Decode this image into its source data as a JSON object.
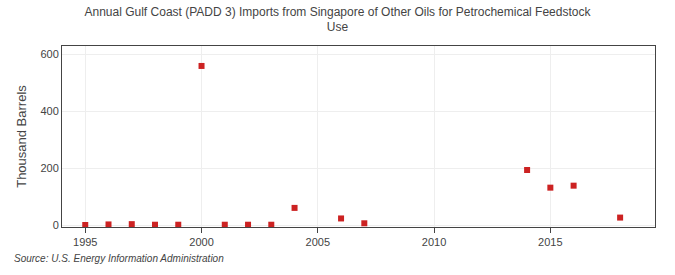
{
  "chart_data": {
    "type": "scatter",
    "title": "Annual Gulf Coast (PADD 3) Imports from Singapore of Other Oils for Petrochemical Feedstock\nUse",
    "ylabel": "Thousand Barrels",
    "annotations": [
      "Source: U.S. Energy Information Administration"
    ],
    "x": [
      1995,
      1996,
      1997,
      1998,
      1999,
      2000,
      2001,
      2002,
      2003,
      2004,
      2006,
      2007,
      2014,
      2015,
      2016,
      2018
    ],
    "values": [
      2,
      4,
      5,
      3,
      3,
      560,
      3,
      3,
      3,
      62,
      25,
      8,
      195,
      133,
      140,
      28
    ],
    "color": "#cc2222",
    "marker": "square",
    "xlim": [
      1994.0,
      2019.5
    ],
    "xticks": [
      1995,
      2000,
      2005,
      2010,
      2015
    ],
    "ylim": [
      -5,
      630
    ],
    "yticks": [
      0,
      200,
      400,
      600
    ],
    "grid": true
  }
}
